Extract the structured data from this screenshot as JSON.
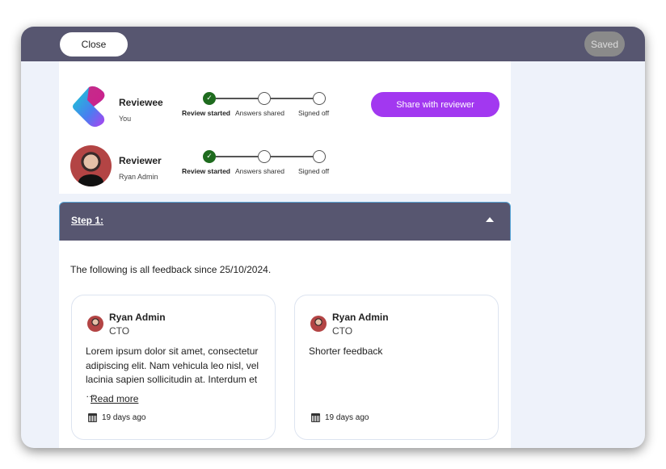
{
  "header": {
    "close_label": "Close",
    "saved_label": "Saved"
  },
  "reviewee": {
    "title": "Reviewee",
    "name": "You",
    "steps": [
      "Review started",
      "Answers shared",
      "Signed off"
    ],
    "completed": 1
  },
  "reviewer": {
    "title": "Reviewer",
    "name": "Ryan Admin",
    "steps": [
      "Review started",
      "Answers shared",
      "Signed off"
    ],
    "completed": 1
  },
  "share_label": "Share with reviewer",
  "step": {
    "title": "Step 1:",
    "intro": "The following is all feedback since 25/10/2024."
  },
  "feedback": [
    {
      "name": "Ryan Admin",
      "role": "CTO",
      "text": "Lorem ipsum dolor sit amet, consectetur adipiscing elit. Nam vehicula leo nisl, vel lacinia sapien sollicitudin at. Interdum et …",
      "read_more": "Read more",
      "date": "19 days ago"
    },
    {
      "name": "Ryan Admin",
      "role": "CTO",
      "text": "Shorter feedback",
      "date": "19 days ago"
    }
  ],
  "colors": {
    "header": "#575670",
    "accent": "#a238f0",
    "done": "#1e6b1e"
  }
}
